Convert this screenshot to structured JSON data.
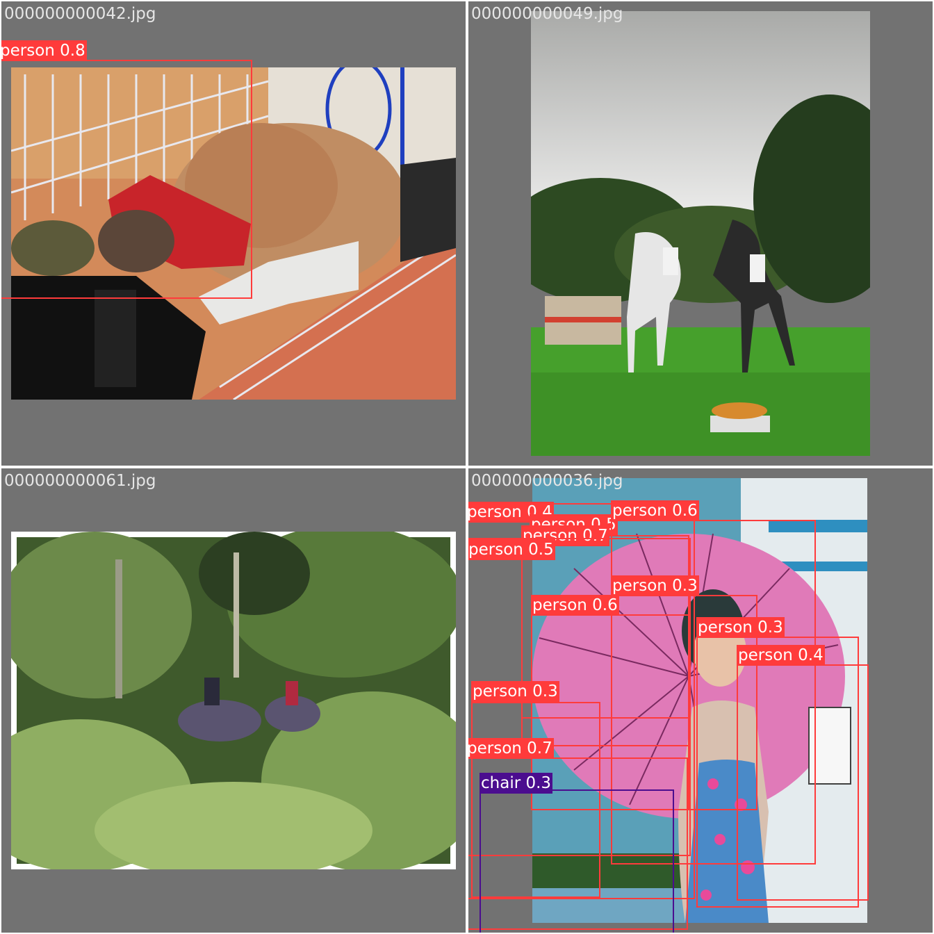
{
  "colors": {
    "background": "#727272",
    "person": "#ff3b3b",
    "chair": "#4b0d8f",
    "label_text": "#ffffff",
    "filename_text": "#e6e6e6"
  },
  "tiles": [
    {
      "filename": "000000000042.jpg",
      "detections": [
        {
          "label": "person 0.8",
          "class": "person"
        }
      ]
    },
    {
      "filename": "000000000049.jpg",
      "detections": []
    },
    {
      "filename": "000000000061.jpg",
      "detections": []
    },
    {
      "filename": "000000000036.jpg",
      "detections": [
        {
          "label": "person 0.4",
          "class": "person"
        },
        {
          "label": "person 0.5",
          "class": "person"
        },
        {
          "label": "person 0.6",
          "class": "person"
        },
        {
          "label": "person 0.7",
          "class": "person"
        },
        {
          "label": "person 0.5",
          "class": "person"
        },
        {
          "label": "person 0.3",
          "class": "person"
        },
        {
          "label": "person 0.6",
          "class": "person"
        },
        {
          "label": "person 0.3",
          "class": "person"
        },
        {
          "label": "person 0.4",
          "class": "person"
        },
        {
          "label": "person 0.3",
          "class": "person"
        },
        {
          "label": "person 0.7",
          "class": "person"
        },
        {
          "label": "chair 0.3",
          "class": "chair"
        }
      ]
    }
  ]
}
